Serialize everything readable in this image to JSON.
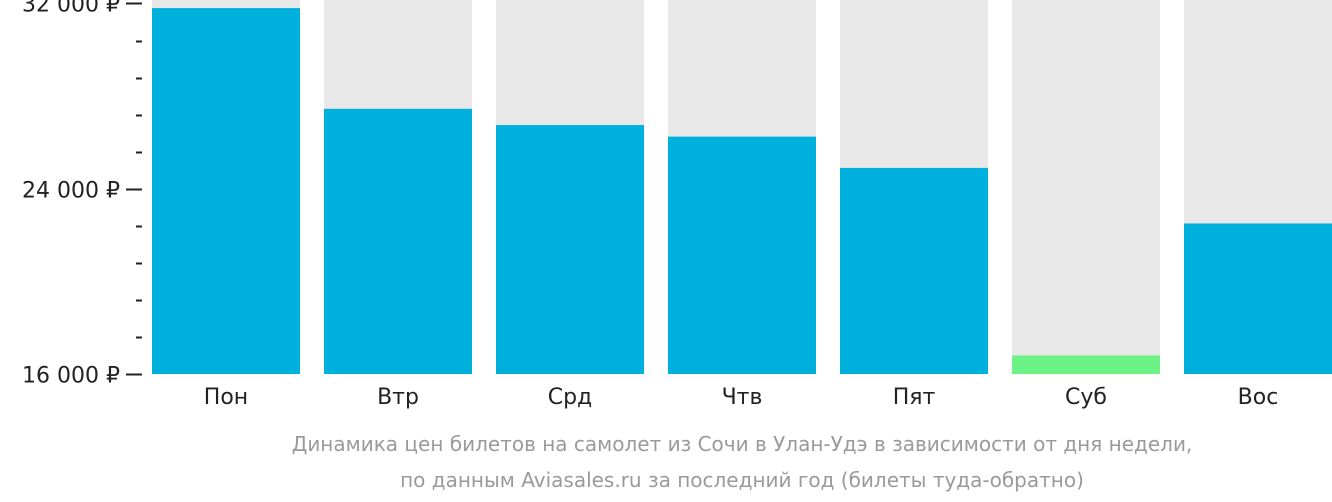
{
  "chart_data": {
    "type": "bar",
    "categories": [
      "Пон",
      "Втр",
      "Срд",
      "Чтв",
      "Пят",
      "Суб",
      "Вос"
    ],
    "values": [
      31800,
      27450,
      26750,
      26250,
      24900,
      16800,
      22500
    ],
    "highlight_index": 5,
    "ylim": [
      16000,
      32150
    ],
    "yticks": [
      {
        "value": 32000,
        "label": "32 000 ₽"
      },
      {
        "value": 24000,
        "label": "24 000 ₽"
      },
      {
        "value": 16000,
        "label": "16 000 ₽"
      }
    ],
    "minor_tick_step": 1600,
    "colors": {
      "bar": "#00b0dc",
      "highlight": "#6cf285",
      "track": "#e8e8e8",
      "axis": "#222222"
    }
  },
  "caption": {
    "line1": "Динамика цен билетов на самолет из Сочи в Улан-Удэ в зависимости от дня недели,",
    "line2": "по данным Aviasales.ru за последний год (билеты туда-обратно)"
  }
}
